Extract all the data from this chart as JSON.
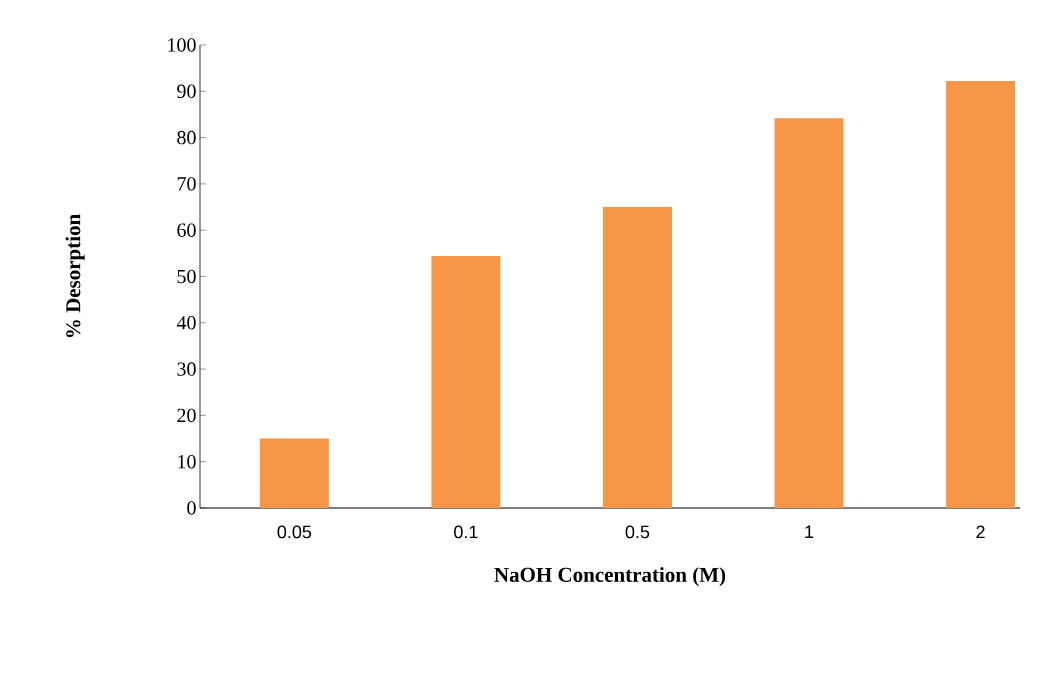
{
  "chart_data": {
    "type": "bar",
    "xlabel": "NaOH Concentration (M)",
    "ylabel": "% Desorption",
    "categories": [
      "0.05",
      "0.1",
      "0.5",
      "1",
      "2"
    ],
    "values": [
      15,
      54.4,
      65,
      84.2,
      92.2
    ],
    "color": "#f79646",
    "ylim": [
      0,
      100
    ],
    "yticks": [
      0,
      10,
      20,
      30,
      40,
      50,
      60,
      70,
      80,
      90,
      100
    ],
    "grid": false
  }
}
